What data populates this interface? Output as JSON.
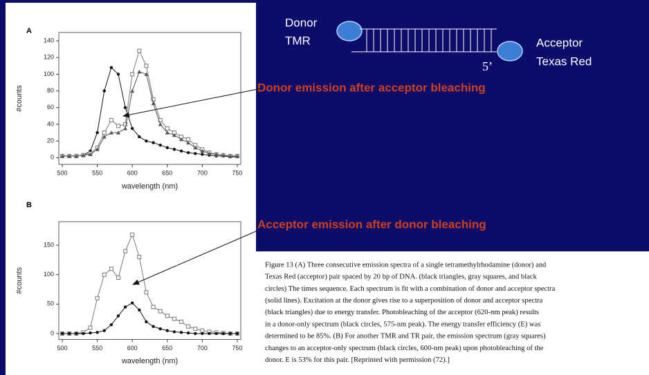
{
  "chart_data": [
    {
      "type": "scatter-line",
      "panel_label": "A",
      "y_label": "#counts",
      "x_label": "wavelength (nm)",
      "x": [
        500,
        510,
        520,
        530,
        540,
        550,
        560,
        570,
        580,
        590,
        600,
        610,
        620,
        630,
        640,
        650,
        660,
        670,
        680,
        690,
        700,
        710,
        720,
        730,
        740,
        750
      ],
      "series": [
        {
          "marker": "circle",
          "color": "#111111",
          "values": [
            2,
            2,
            2,
            3,
            8,
            30,
            80,
            108,
            100,
            60,
            35,
            25,
            20,
            18,
            15,
            12,
            10,
            8,
            6,
            5,
            4,
            3,
            2,
            2,
            1,
            1
          ]
        },
        {
          "marker": "square",
          "color": "#777777",
          "values": [
            2,
            2,
            2,
            3,
            5,
            12,
            30,
            45,
            38,
            40,
            100,
            128,
            110,
            70,
            45,
            35,
            30,
            25,
            22,
            15,
            10,
            6,
            4,
            3,
            2,
            2
          ]
        },
        {
          "marker": "triangle",
          "color": "#555555",
          "values": [
            2,
            2,
            2,
            3,
            4,
            10,
            25,
            30,
            30,
            35,
            80,
            103,
            100,
            65,
            40,
            30,
            27,
            22,
            18,
            12,
            8,
            5,
            4,
            3,
            2,
            2
          ]
        }
      ],
      "xlim": [
        495,
        755
      ],
      "ylim": [
        -8,
        150
      ],
      "xticks": [
        500,
        550,
        600,
        650,
        700,
        750
      ],
      "yticks": [
        0,
        20,
        40,
        60,
        80,
        100,
        120,
        140
      ]
    },
    {
      "type": "scatter-line",
      "panel_label": "B",
      "y_label": "#counts",
      "x_label": "wavelength (nm)",
      "x": [
        500,
        510,
        520,
        530,
        540,
        550,
        560,
        570,
        580,
        590,
        600,
        610,
        620,
        630,
        640,
        650,
        660,
        670,
        680,
        690,
        700,
        710,
        720,
        730,
        740,
        750
      ],
      "series": [
        {
          "marker": "square",
          "color": "#777777",
          "values": [
            0,
            0,
            0,
            2,
            10,
            60,
            100,
            110,
            95,
            140,
            168,
            130,
            70,
            45,
            38,
            30,
            25,
            20,
            12,
            8,
            5,
            3,
            2,
            1,
            0,
            0
          ]
        },
        {
          "marker": "circle",
          "color": "#111111",
          "values": [
            0,
            0,
            0,
            0,
            1,
            2,
            5,
            15,
            30,
            45,
            52,
            40,
            20,
            12,
            8,
            5,
            3,
            2,
            1,
            0,
            0,
            0,
            0,
            0,
            0,
            0
          ]
        }
      ],
      "xlim": [
        495,
        755
      ],
      "ylim": [
        -10,
        190
      ],
      "xticks": [
        500,
        550,
        600,
        650,
        700,
        750
      ],
      "yticks": [
        0,
        50,
        100,
        150
      ]
    }
  ],
  "annotations": [
    "Donor emission after acceptor bleaching",
    "Acceptor emission after donor bleaching"
  ],
  "diagram": {
    "donor": [
      "Donor",
      "TMR"
    ],
    "acceptor": [
      "Acceptor",
      "Texas Red"
    ],
    "end": "5’"
  },
  "caption": {
    "lines": [
      "Figure 13  (A) Three consecutive emission spectra of a single tetramethylrhodamine (donor) and",
      "Texas Red (acceptor) pair spaced by 20 bp of DNA. (black triangles, gray squares, and black",
      "circles) The times sequence. Each spectrum is fit with a combination of donor and acceptor spectra",
      "(solid lines). Excitation at the donor gives rise to a superposition of donor and acceptor spectra",
      "(black triangles) due to energy transfer. Photobleaching of the acceptor (620-nm peak) results",
      "in a donor-only spectrum (black circles, 575-nm peak). The energy transfer efficiency (E) was",
      "determined to be 85%. (B) For another TMR and TR pair, the emission spectrum (gray squares)",
      "changes to an acceptor-only spectrum (black circles, 600-nm peak) upon photobleaching of the",
      "donor. E is 53% for this pair. [Reprinted with permission (72).]"
    ]
  }
}
